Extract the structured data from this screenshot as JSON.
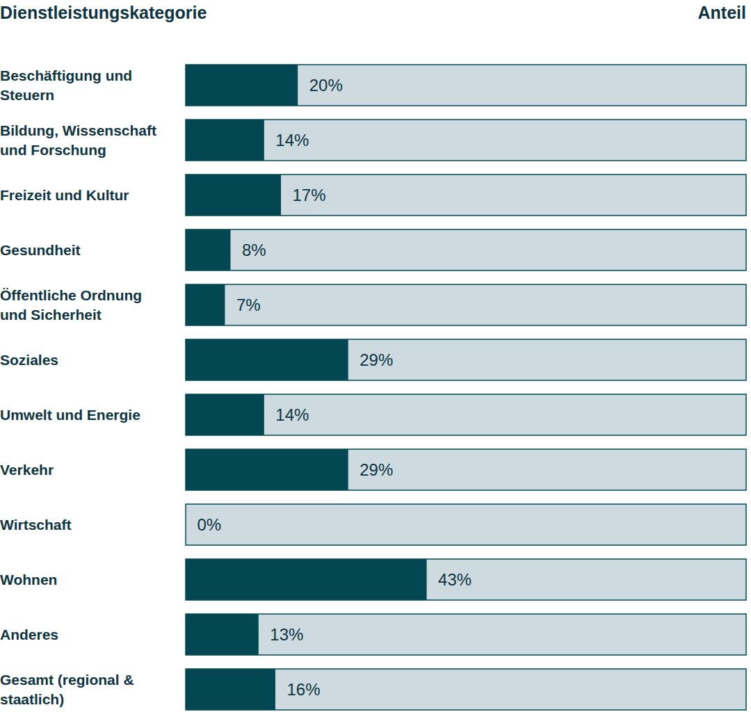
{
  "chart_data": {
    "type": "bar",
    "orientation": "horizontal",
    "y_label": "Dienstleistungskategorie",
    "x_label": "Anteil",
    "categories": [
      "Beschäftigung und Steuern",
      "Bildung, Wissenschaft und Forschung",
      "Freizeit und Kultur",
      "Gesundheit",
      "Öffentliche Ordnung und Sicherheit",
      "Soziales",
      "Umwelt und Energie",
      "Verkehr",
      "Wirtschaft",
      "Wohnen",
      "Anderes",
      "Gesamt (regional & staatlich)"
    ],
    "values": [
      20,
      14,
      17,
      8,
      7,
      29,
      14,
      29,
      0,
      43,
      13,
      16
    ],
    "value_labels": [
      "20%",
      "14%",
      "17%",
      "8%",
      "7%",
      "29%",
      "14%",
      "29%",
      "0%",
      "43%",
      "13%",
      "16%"
    ],
    "color": "#034752",
    "xlim": [
      0,
      100
    ],
    "tick_labels": false,
    "data_labels": true
  }
}
